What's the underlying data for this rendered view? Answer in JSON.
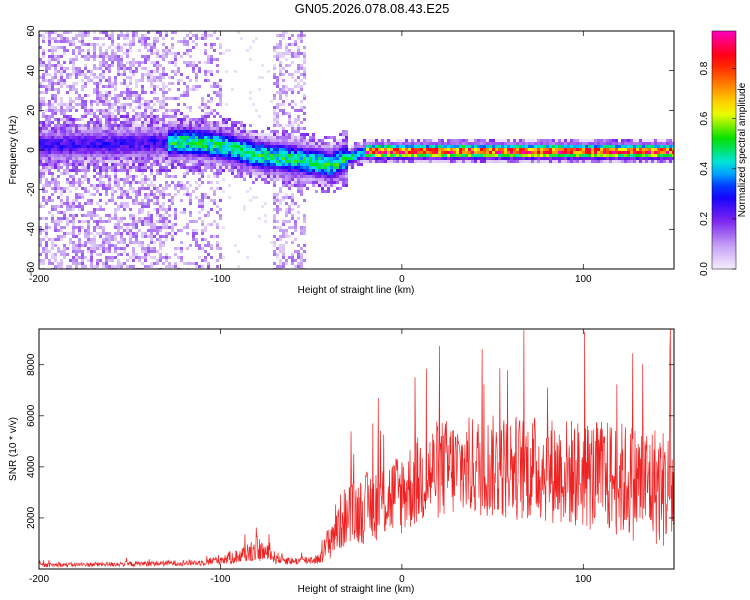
{
  "figure_title": "GN05.2026.078.08.43.E25",
  "chart_data": [
    {
      "type": "heatmap",
      "title": "GN05.2026.078.08.43.E25",
      "xlabel": "Height of straight line (km)",
      "ylabel": "Frequency (Hz)",
      "xlim": [
        -200,
        150
      ],
      "ylim": [
        -60,
        60
      ],
      "x_ticks": [
        "-200",
        "-100",
        "0",
        "100"
      ],
      "y_ticks": [
        "-60",
        "-40",
        "-20",
        "0",
        "20",
        "40",
        "60"
      ],
      "x_tick_values": [
        -200,
        -100,
        0,
        100
      ],
      "y_tick_values": [
        -60,
        -40,
        -20,
        0,
        20,
        40,
        60
      ],
      "grid": false,
      "colorbar": {
        "label": "Normalized spectral amplitude",
        "range": [
          0.0,
          0.95
        ],
        "ticks": [
          "0.0",
          "0.2",
          "0.4",
          "0.6",
          "0.8"
        ],
        "tick_values": [
          0.0,
          0.2,
          0.4,
          0.6,
          0.8
        ],
        "colormap": [
          "#ffffff",
          "#c9a6f5",
          "#7a1ff0",
          "#0000ff",
          "#00e5ff",
          "#00e000",
          "#ffff00",
          "#ff8000",
          "#ff0000",
          "#ff00c0"
        ]
      },
      "ridge": {
        "description_points_x": [
          -200,
          -150,
          -120,
          -100,
          -80,
          -60,
          -40,
          -30,
          -20,
          0,
          50,
          100,
          150
        ],
        "description_points_y": [
          3,
          4,
          5,
          3,
          -2,
          -4,
          -7,
          -3,
          0,
          0,
          0,
          0,
          0
        ]
      },
      "noise_band_x": [
        -200,
        -100
      ],
      "noise_band_secondary_x": [
        -72,
        -53
      ]
    },
    {
      "type": "line",
      "xlabel": "Height of straight line (km)",
      "ylabel": "SNR (10 * v/v)",
      "xlim": [
        -200,
        150
      ],
      "ylim": [
        0,
        9400
      ],
      "x_ticks": [
        "-200",
        "-100",
        "0",
        "100"
      ],
      "y_ticks": [
        "2000",
        "4000",
        "6000",
        "8000"
      ],
      "x_tick_values": [
        -200,
        -100,
        0,
        100
      ],
      "y_tick_values": [
        2000,
        4000,
        6000,
        8000
      ],
      "grid": false,
      "series": [
        {
          "color": "#ee2222",
          "envelope_x": [
            -200,
            -150,
            -110,
            -90,
            -80,
            -70,
            -60,
            -45,
            -38,
            -32,
            -20,
            0,
            10,
            20,
            40,
            60,
            80,
            100,
            120,
            140,
            150
          ],
          "envelope_mean": [
            150,
            200,
            250,
            500,
            800,
            450,
            300,
            400,
            1400,
            2000,
            2400,
            3000,
            3500,
            3900,
            4000,
            4000,
            3900,
            3700,
            3500,
            3300,
            3000
          ],
          "envelope_spread": [
            80,
            100,
            120,
            300,
            500,
            250,
            150,
            200,
            1000,
            1200,
            1400,
            1700,
            1800,
            2000,
            2000,
            2100,
            2100,
            2200,
            2300,
            2400,
            2400
          ],
          "peak_value": 9400,
          "peak_x": 148
        }
      ]
    }
  ]
}
